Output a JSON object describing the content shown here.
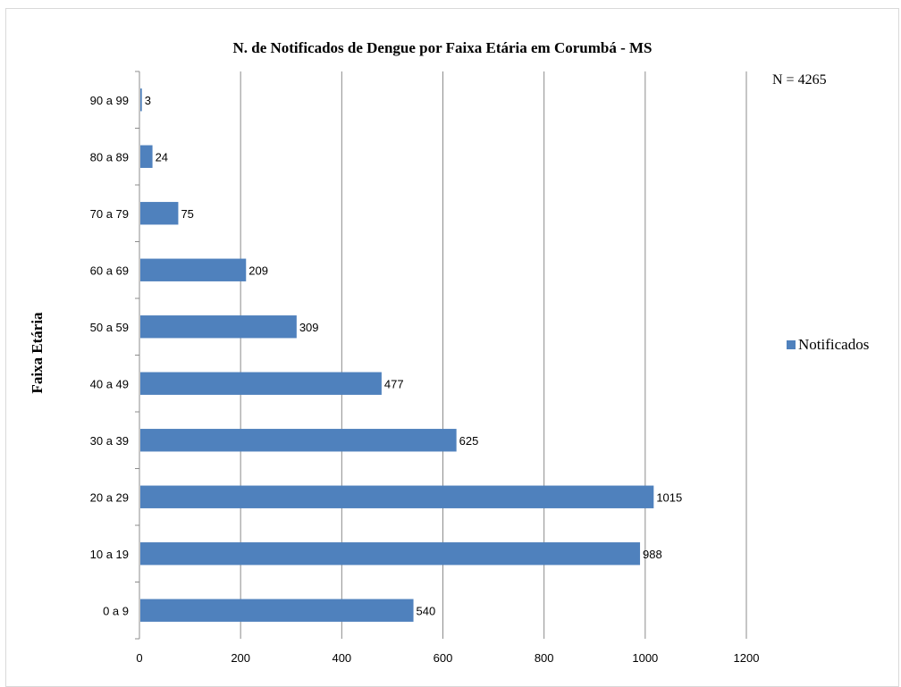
{
  "chart_data": {
    "type": "bar",
    "orientation": "horizontal",
    "title": "N. de Notificados de Dengue por Faixa Etária em Corumbá - MS",
    "annotation": "N = 4265",
    "ylabel": "Faixa Etária",
    "xlabel": "",
    "categories": [
      "0 a 9",
      "10 a 19",
      "20 a 29",
      "30 a 39",
      "40 a 49",
      "50 a 59",
      "60 a 69",
      "70 a 79",
      "80 a 89",
      "90 a 99"
    ],
    "series": [
      {
        "name": "Notificados",
        "color": "#4f81bd",
        "values": [
          540,
          988,
          1015,
          625,
          477,
          309,
          209,
          75,
          24,
          3
        ]
      }
    ],
    "xlim": [
      0,
      1200
    ],
    "xticks": [
      0,
      200,
      400,
      600,
      800,
      1000,
      1200
    ],
    "grid": true,
    "legend_position": "right",
    "data_labels": true
  }
}
